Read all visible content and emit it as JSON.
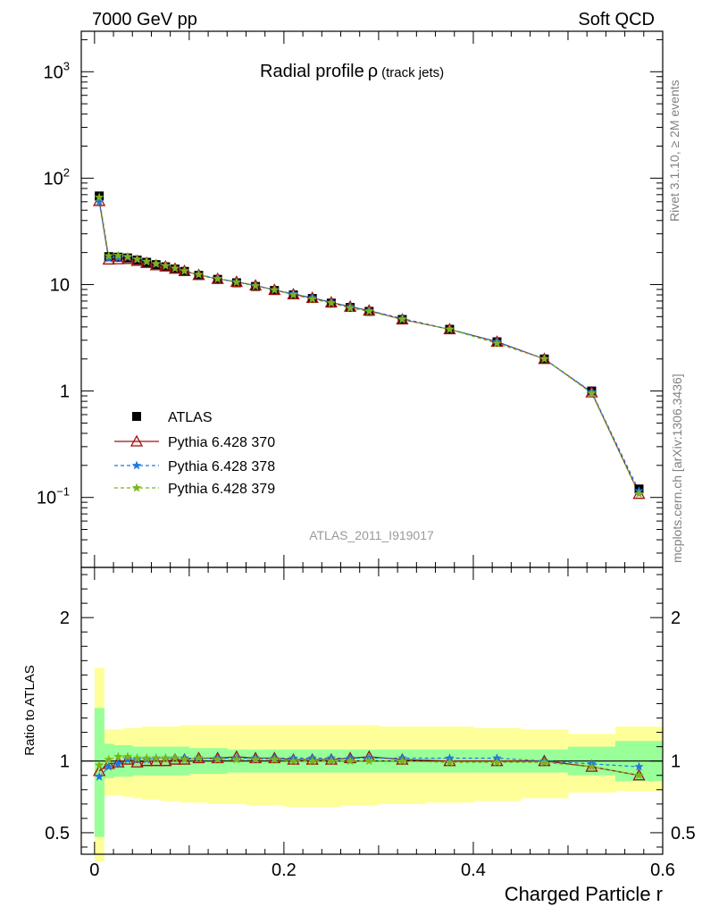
{
  "header": {
    "left": "7000 GeV pp",
    "right": "Soft QCD"
  },
  "side_labels": {
    "rivet": "Rivet 3.1.10, ≥ 2M events",
    "mcplots": "mcplots.cern.ch [arXiv:1306.3436]"
  },
  "chart_data": [
    {
      "type": "scatter",
      "panel": "main",
      "title": "Radial profile",
      "title_symbol": "ρ",
      "title_suffix": "(track jets)",
      "watermark": "ATLAS_2011_I919017",
      "yscale": "log",
      "ylim": [
        0.022,
        2400
      ],
      "xlim": [
        -0.014,
        0.6
      ],
      "y_ticks": [
        {
          "value": 1000,
          "base": "10",
          "exp": "3"
        },
        {
          "value": 100,
          "base": "10",
          "exp": "2"
        },
        {
          "value": 10,
          "base": "10",
          "exp": ""
        },
        {
          "value": 1,
          "base": "1",
          "exp": ""
        },
        {
          "value": 0.1,
          "base": "10",
          "exp": "−1"
        }
      ],
      "legend_position": "lower-left",
      "x": [
        0.005,
        0.015,
        0.025,
        0.035,
        0.045,
        0.055,
        0.065,
        0.075,
        0.085,
        0.095,
        0.11,
        0.13,
        0.15,
        0.17,
        0.19,
        0.21,
        0.23,
        0.25,
        0.27,
        0.29,
        0.325,
        0.375,
        0.425,
        0.475,
        0.525,
        0.575
      ],
      "series": [
        {
          "name": "ATLAS",
          "color": "#000000",
          "marker": "square",
          "values": [
            68,
            18.3,
            18.1,
            17.8,
            17.0,
            16.2,
            15.4,
            14.7,
            14.0,
            13.3,
            12.2,
            11.2,
            10.4,
            9.6,
            8.8,
            8.0,
            7.4,
            6.7,
            6.1,
            5.6,
            4.7,
            3.8,
            2.9,
            2.0,
            1.0,
            0.12
          ]
        },
        {
          "name": "Pythia 6.428 370",
          "color": "#a01010",
          "marker": "triangle",
          "dash": "",
          "values": [
            61,
            17.2,
            17.3,
            17.4,
            16.7,
            16.0,
            15.2,
            14.8,
            14.1,
            13.4,
            12.3,
            11.3,
            10.6,
            9.8,
            8.9,
            8.1,
            7.5,
            6.8,
            6.2,
            5.7,
            4.7,
            3.8,
            2.9,
            2.0,
            0.97,
            0.108
          ]
        },
        {
          "name": "Pythia 6.428 378",
          "color": "#1f77e0",
          "marker": "star",
          "dash": "4,3",
          "values": [
            60,
            17.6,
            17.8,
            18.0,
            17.2,
            16.4,
            15.6,
            15.0,
            14.2,
            13.5,
            12.4,
            11.4,
            10.6,
            9.8,
            8.9,
            8.2,
            7.5,
            6.8,
            6.2,
            5.7,
            4.8,
            3.8,
            2.9,
            2.0,
            0.98,
            0.115
          ]
        },
        {
          "name": "Pythia 6.428 379",
          "color": "#7ab51d",
          "marker": "star",
          "dash": "4,3",
          "values": [
            66,
            18.6,
            18.7,
            18.3,
            17.3,
            16.5,
            15.7,
            15.0,
            14.2,
            13.4,
            12.4,
            11.3,
            10.5,
            9.7,
            8.9,
            8.0,
            7.3,
            6.7,
            6.0,
            5.6,
            4.7,
            3.8,
            2.8,
            2.0,
            0.95,
            0.108
          ]
        }
      ]
    },
    {
      "type": "scatter",
      "panel": "ratio",
      "ylabel": "Ratio to ATLAS",
      "xlabel": "Charged Particle r",
      "ylim": [
        0.35,
        2.35
      ],
      "xlim": [
        -0.014,
        0.6
      ],
      "y_ticks": [
        "0.5",
        "1",
        "2"
      ],
      "x_ticks": [
        "0",
        "0.2",
        "0.4",
        "0.6"
      ],
      "bin_edges": [
        0.0,
        0.01,
        0.02,
        0.03,
        0.04,
        0.05,
        0.06,
        0.07,
        0.08,
        0.09,
        0.1,
        0.12,
        0.14,
        0.16,
        0.18,
        0.2,
        0.22,
        0.24,
        0.26,
        0.28,
        0.3,
        0.35,
        0.4,
        0.45,
        0.5,
        0.55,
        0.6
      ],
      "band_green": [
        [
          0.47,
          1.37
        ],
        [
          0.88,
          1.12
        ],
        [
          0.89,
          1.11
        ],
        [
          0.89,
          1.11
        ],
        [
          0.9,
          1.1
        ],
        [
          0.9,
          1.1
        ],
        [
          0.9,
          1.1
        ],
        [
          0.9,
          1.1
        ],
        [
          0.9,
          1.1
        ],
        [
          0.9,
          1.1
        ],
        [
          0.91,
          1.09
        ],
        [
          0.91,
          1.09
        ],
        [
          0.92,
          1.08
        ],
        [
          0.92,
          1.08
        ],
        [
          0.92,
          1.08
        ],
        [
          0.92,
          1.08
        ],
        [
          0.92,
          1.08
        ],
        [
          0.92,
          1.08
        ],
        [
          0.92,
          1.08
        ],
        [
          0.92,
          1.08
        ],
        [
          0.92,
          1.08
        ],
        [
          0.92,
          1.08
        ],
        [
          0.92,
          1.08
        ],
        [
          0.92,
          1.08
        ],
        [
          0.9,
          1.1
        ],
        [
          0.86,
          1.14
        ]
      ],
      "band_yellow": [
        [
          0.3,
          1.65
        ],
        [
          0.76,
          1.22
        ],
        [
          0.76,
          1.22
        ],
        [
          0.75,
          1.23
        ],
        [
          0.74,
          1.23
        ],
        [
          0.73,
          1.24
        ],
        [
          0.73,
          1.24
        ],
        [
          0.72,
          1.24
        ],
        [
          0.72,
          1.24
        ],
        [
          0.71,
          1.25
        ],
        [
          0.71,
          1.25
        ],
        [
          0.7,
          1.25
        ],
        [
          0.7,
          1.25
        ],
        [
          0.69,
          1.25
        ],
        [
          0.69,
          1.25
        ],
        [
          0.68,
          1.25
        ],
        [
          0.68,
          1.25
        ],
        [
          0.68,
          1.25
        ],
        [
          0.69,
          1.25
        ],
        [
          0.69,
          1.25
        ],
        [
          0.7,
          1.24
        ],
        [
          0.71,
          1.24
        ],
        [
          0.72,
          1.23
        ],
        [
          0.74,
          1.22
        ],
        [
          0.78,
          1.19
        ],
        [
          0.79,
          1.24
        ]
      ],
      "series": [
        {
          "name": "Pythia 6.428 370",
          "color": "#a01010",
          "marker": "triangle",
          "dash": "",
          "values": [
            0.93,
            0.98,
            0.99,
            1.01,
            0.99,
            1.0,
            1.0,
            1.0,
            1.01,
            1.01,
            1.02,
            1.02,
            1.03,
            1.02,
            1.02,
            1.01,
            1.01,
            1.01,
            1.02,
            1.03,
            1.01,
            1.0,
            1.0,
            1.0,
            0.96,
            0.9
          ]
        },
        {
          "name": "Pythia 6.428 378",
          "color": "#1f77e0",
          "marker": "star",
          "dash": "4,3",
          "values": [
            0.89,
            0.96,
            0.98,
            1.01,
            1.01,
            1.01,
            1.02,
            1.02,
            1.02,
            1.02,
            1.02,
            1.02,
            1.02,
            1.02,
            1.02,
            1.02,
            1.02,
            1.02,
            1.02,
            1.02,
            1.02,
            1.02,
            1.02,
            1.0,
            0.98,
            0.96
          ]
        },
        {
          "name": "Pythia 6.428 379",
          "color": "#7ab51d",
          "marker": "star",
          "dash": "4,3",
          "values": [
            0.97,
            1.01,
            1.03,
            1.03,
            1.02,
            1.02,
            1.02,
            1.02,
            1.02,
            1.01,
            1.02,
            1.01,
            1.01,
            1.01,
            1.01,
            1.0,
            1.0,
            1.0,
            1.0,
            1.0,
            1.0,
            0.99,
            0.99,
            0.99,
            0.96,
            0.9
          ]
        }
      ]
    }
  ]
}
